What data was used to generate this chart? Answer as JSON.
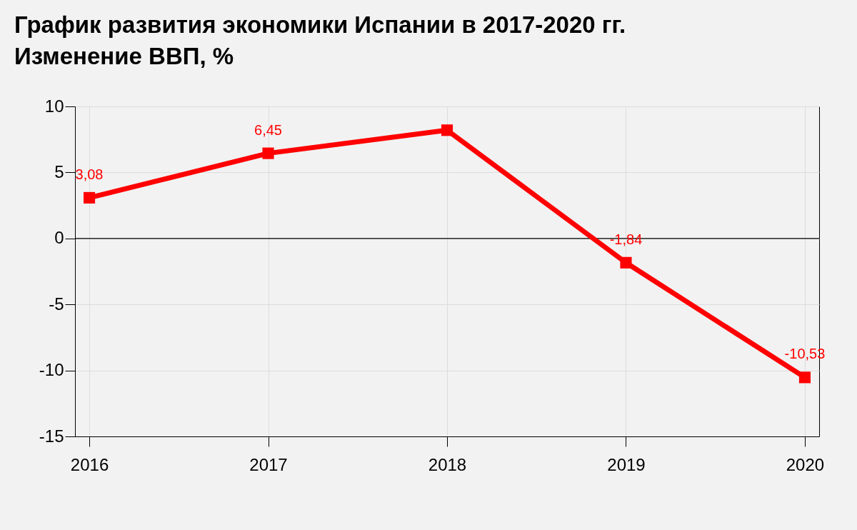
{
  "chart_data": {
    "type": "line",
    "title": [
      "График развития экономики Испании в 2017-2020 гг.",
      "Изменение ВВП, %"
    ],
    "x": [
      2016,
      2017,
      2018,
      2019,
      2020
    ],
    "series": [
      {
        "color": "#ff0000",
        "values": [
          3.08,
          6.45,
          8.2,
          -1.84,
          -10.53
        ],
        "value_labels": [
          "3,08",
          "6,45",
          null,
          "-1,84",
          "-10,53"
        ]
      }
    ],
    "xlim": [
      2015.92,
      2020.08
    ],
    "xticks": [
      2016,
      2017,
      2018,
      2019,
      2020
    ],
    "ylim": [
      -15,
      10
    ],
    "yticks": [
      -15,
      -10,
      -5,
      0,
      5,
      10
    ],
    "ref_lines": [
      {
        "axis": "y",
        "value": 0,
        "color": "#000000"
      }
    ],
    "grid": true,
    "marker": "square",
    "line_style": "solid"
  }
}
